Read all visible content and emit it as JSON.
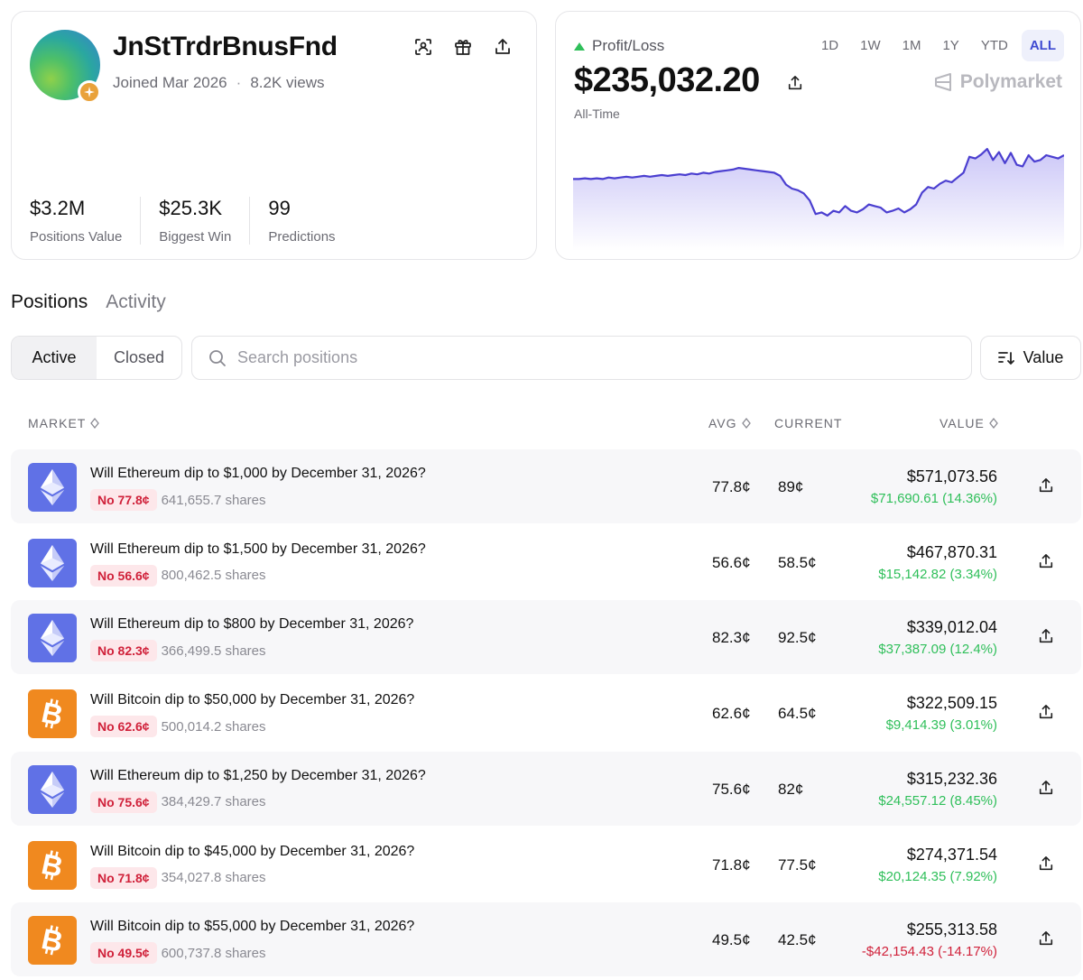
{
  "profile": {
    "username": "JnStTrdrBnusFnd",
    "joined": "Joined Mar 2026",
    "separator": "·",
    "views": "8.2K views",
    "stats": [
      {
        "value": "$3.2M",
        "label": "Positions Value"
      },
      {
        "value": "$25.3K",
        "label": "Biggest Win"
      },
      {
        "value": "99",
        "label": "Predictions"
      }
    ],
    "icons": [
      "scan-icon",
      "gift-icon",
      "share-icon"
    ]
  },
  "pnl": {
    "label": "Profit/Loss",
    "trend": "up",
    "value": "$235,032.20",
    "range": "All-Time",
    "timeframes": [
      "1D",
      "1W",
      "1M",
      "1Y",
      "YTD",
      "ALL"
    ],
    "active_timeframe": "ALL",
    "brand": "Polymarket",
    "line_color": "#4b3fd0",
    "series": [
      0.62,
      0.62,
      0.63,
      0.62,
      0.63,
      0.62,
      0.64,
      0.63,
      0.64,
      0.65,
      0.64,
      0.65,
      0.66,
      0.65,
      0.66,
      0.67,
      0.66,
      0.67,
      0.68,
      0.67,
      0.69,
      0.68,
      0.7,
      0.69,
      0.71,
      0.72,
      0.73,
      0.74,
      0.76,
      0.75,
      0.74,
      0.73,
      0.72,
      0.71,
      0.7,
      0.66,
      0.55,
      0.5,
      0.48,
      0.44,
      0.35,
      0.18,
      0.2,
      0.16,
      0.22,
      0.2,
      0.28,
      0.22,
      0.2,
      0.24,
      0.3,
      0.28,
      0.26,
      0.2,
      0.22,
      0.25,
      0.2,
      0.24,
      0.3,
      0.45,
      0.52,
      0.5,
      0.56,
      0.6,
      0.58,
      0.64,
      0.7,
      0.9,
      0.88,
      0.93,
      1.0,
      0.86,
      0.96,
      0.82,
      0.95,
      0.8,
      0.78,
      0.92,
      0.84,
      0.86,
      0.92,
      0.9,
      0.88,
      0.92
    ]
  },
  "tabs": {
    "items": [
      "Positions",
      "Activity"
    ],
    "active": "Positions"
  },
  "filters": {
    "items": [
      "Active",
      "Closed"
    ],
    "active": "Active"
  },
  "search": {
    "placeholder": "Search positions",
    "value": ""
  },
  "sort": {
    "label": "Value"
  },
  "table": {
    "headers": {
      "market": "MARKET",
      "avg": "AVG",
      "current": "CURRENT",
      "value": "VALUE"
    },
    "rows": [
      {
        "coin": "eth",
        "title": "Will Ethereum dip to $1,000 by December 31, 2026?",
        "outcome": "No 77.8¢",
        "shares": "641,655.7 shares",
        "avg": "77.8¢",
        "current": "89¢",
        "value": "$571,073.56",
        "pnl": "$71,690.61 (14.36%)",
        "trend": "up"
      },
      {
        "coin": "eth",
        "title": "Will Ethereum dip to $1,500 by December 31, 2026?",
        "outcome": "No 56.6¢",
        "shares": "800,462.5 shares",
        "avg": "56.6¢",
        "current": "58.5¢",
        "value": "$467,870.31",
        "pnl": "$15,142.82 (3.34%)",
        "trend": "up"
      },
      {
        "coin": "eth",
        "title": "Will Ethereum dip to $800 by December 31, 2026?",
        "outcome": "No 82.3¢",
        "shares": "366,499.5 shares",
        "avg": "82.3¢",
        "current": "92.5¢",
        "value": "$339,012.04",
        "pnl": "$37,387.09 (12.4%)",
        "trend": "up"
      },
      {
        "coin": "btc",
        "title": "Will Bitcoin dip to $50,000 by December 31, 2026?",
        "outcome": "No 62.6¢",
        "shares": "500,014.2 shares",
        "avg": "62.6¢",
        "current": "64.5¢",
        "value": "$322,509.15",
        "pnl": "$9,414.39 (3.01%)",
        "trend": "up"
      },
      {
        "coin": "eth",
        "title": "Will Ethereum dip to $1,250 by December 31, 2026?",
        "outcome": "No 75.6¢",
        "shares": "384,429.7 shares",
        "avg": "75.6¢",
        "current": "82¢",
        "value": "$315,232.36",
        "pnl": "$24,557.12 (8.45%)",
        "trend": "up"
      },
      {
        "coin": "btc",
        "title": "Will Bitcoin dip to $45,000 by December 31, 2026?",
        "outcome": "No 71.8¢",
        "shares": "354,027.8 shares",
        "avg": "71.8¢",
        "current": "77.5¢",
        "value": "$274,371.54",
        "pnl": "$20,124.35 (7.92%)",
        "trend": "up"
      },
      {
        "coin": "btc",
        "title": "Will Bitcoin dip to $55,000 by December 31, 2026?",
        "outcome": "No 49.5¢",
        "shares": "600,737.8 shares",
        "avg": "49.5¢",
        "current": "42.5¢",
        "value": "$255,313.58",
        "pnl": "-$42,154.43 (-14.17%)",
        "trend": "down"
      }
    ]
  }
}
